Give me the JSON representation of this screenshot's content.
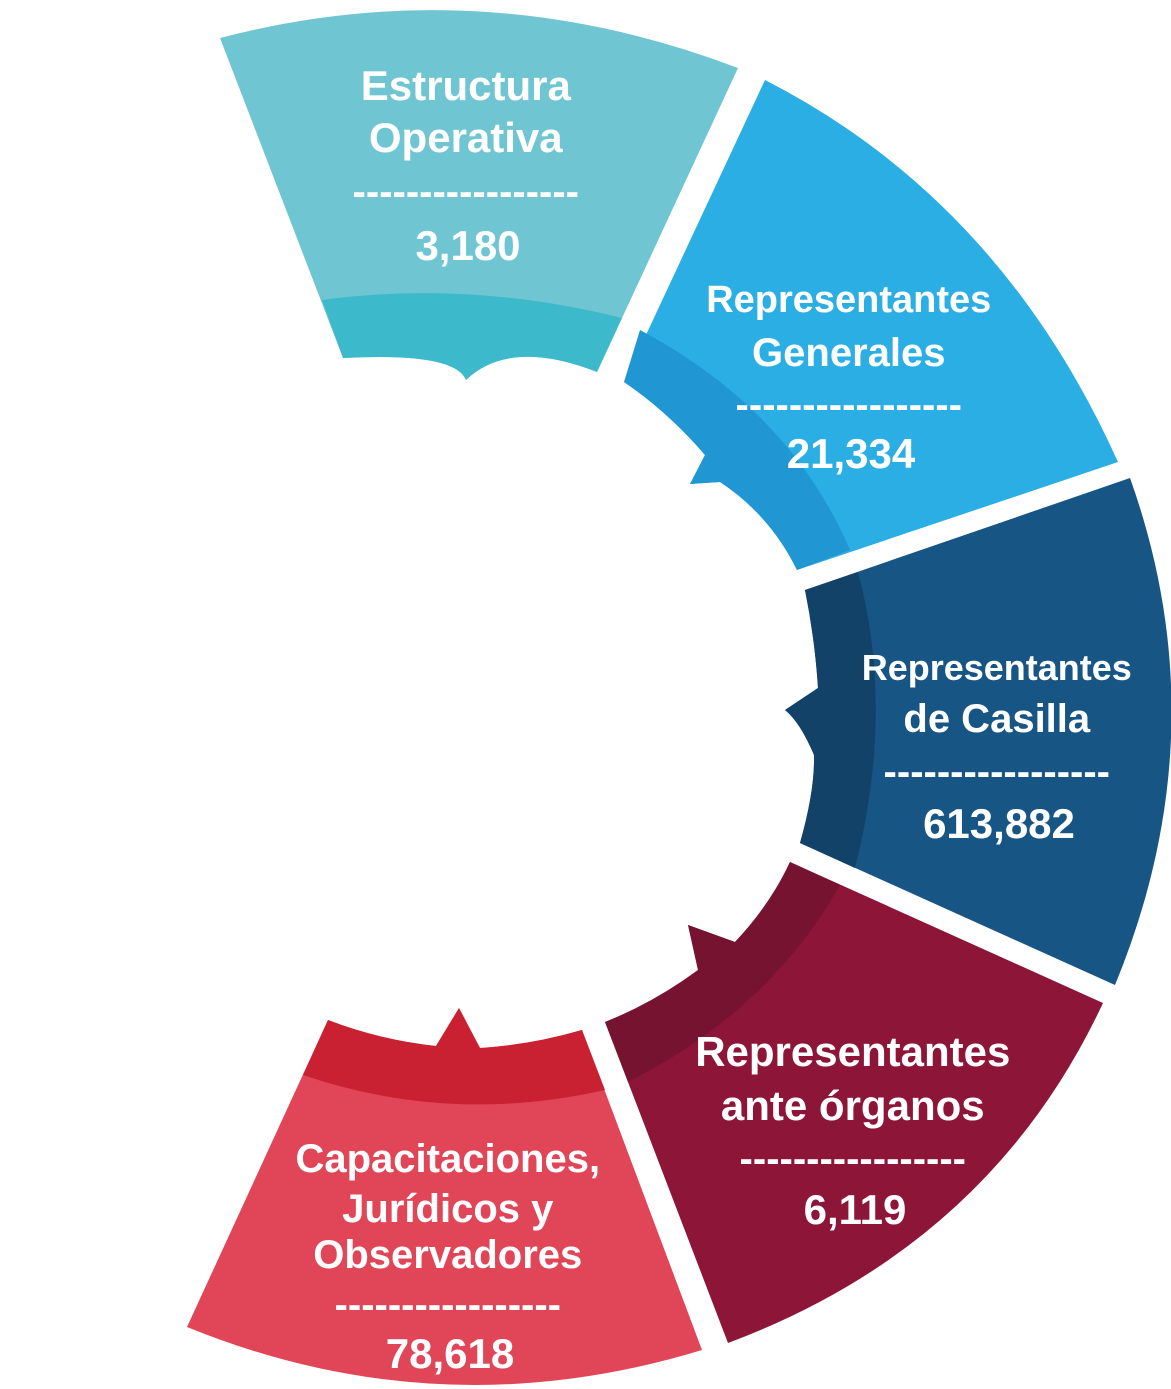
{
  "colors": {
    "estructura": "#6fc5d1",
    "estructura_inner": "#3db9cc",
    "generales": "#2aaee3",
    "generales_inner": "#2096d2",
    "casilla": "#175584",
    "casilla_inner": "#134268",
    "organos": "#8d1538",
    "organos_inner": "#761330",
    "capacitaciones": "#e04657",
    "capacitaciones_inner": "#c92131",
    "background": "#ffffff"
  },
  "segments": [
    {
      "id": "estructura",
      "lines": [
        "Estructura",
        "Operativa"
      ],
      "separator": "-----------------",
      "value": "3,180",
      "icon": "arrow-down-notch"
    },
    {
      "id": "generales",
      "lines": [
        "Representantes",
        "Generales"
      ],
      "separator": "-----------------",
      "value": "21,334",
      "icon": "arrow-left-notch"
    },
    {
      "id": "casilla",
      "lines": [
        "Representantes",
        "de Casilla"
      ],
      "separator": "-----------------",
      "value": "613,882",
      "icon": "arrow-left-notch"
    },
    {
      "id": "organos",
      "lines": [
        "Representantes",
        "ante órganos"
      ],
      "separator": "-----------------",
      "value": "6,119",
      "icon": "arrow-up-left-notch"
    },
    {
      "id": "capacitaciones",
      "lines": [
        "Capacitaciones,",
        "Jurídicos y",
        "Observadores"
      ],
      "separator": "-----------------",
      "value": "78,618",
      "icon": "arrow-up-notch"
    }
  ]
}
